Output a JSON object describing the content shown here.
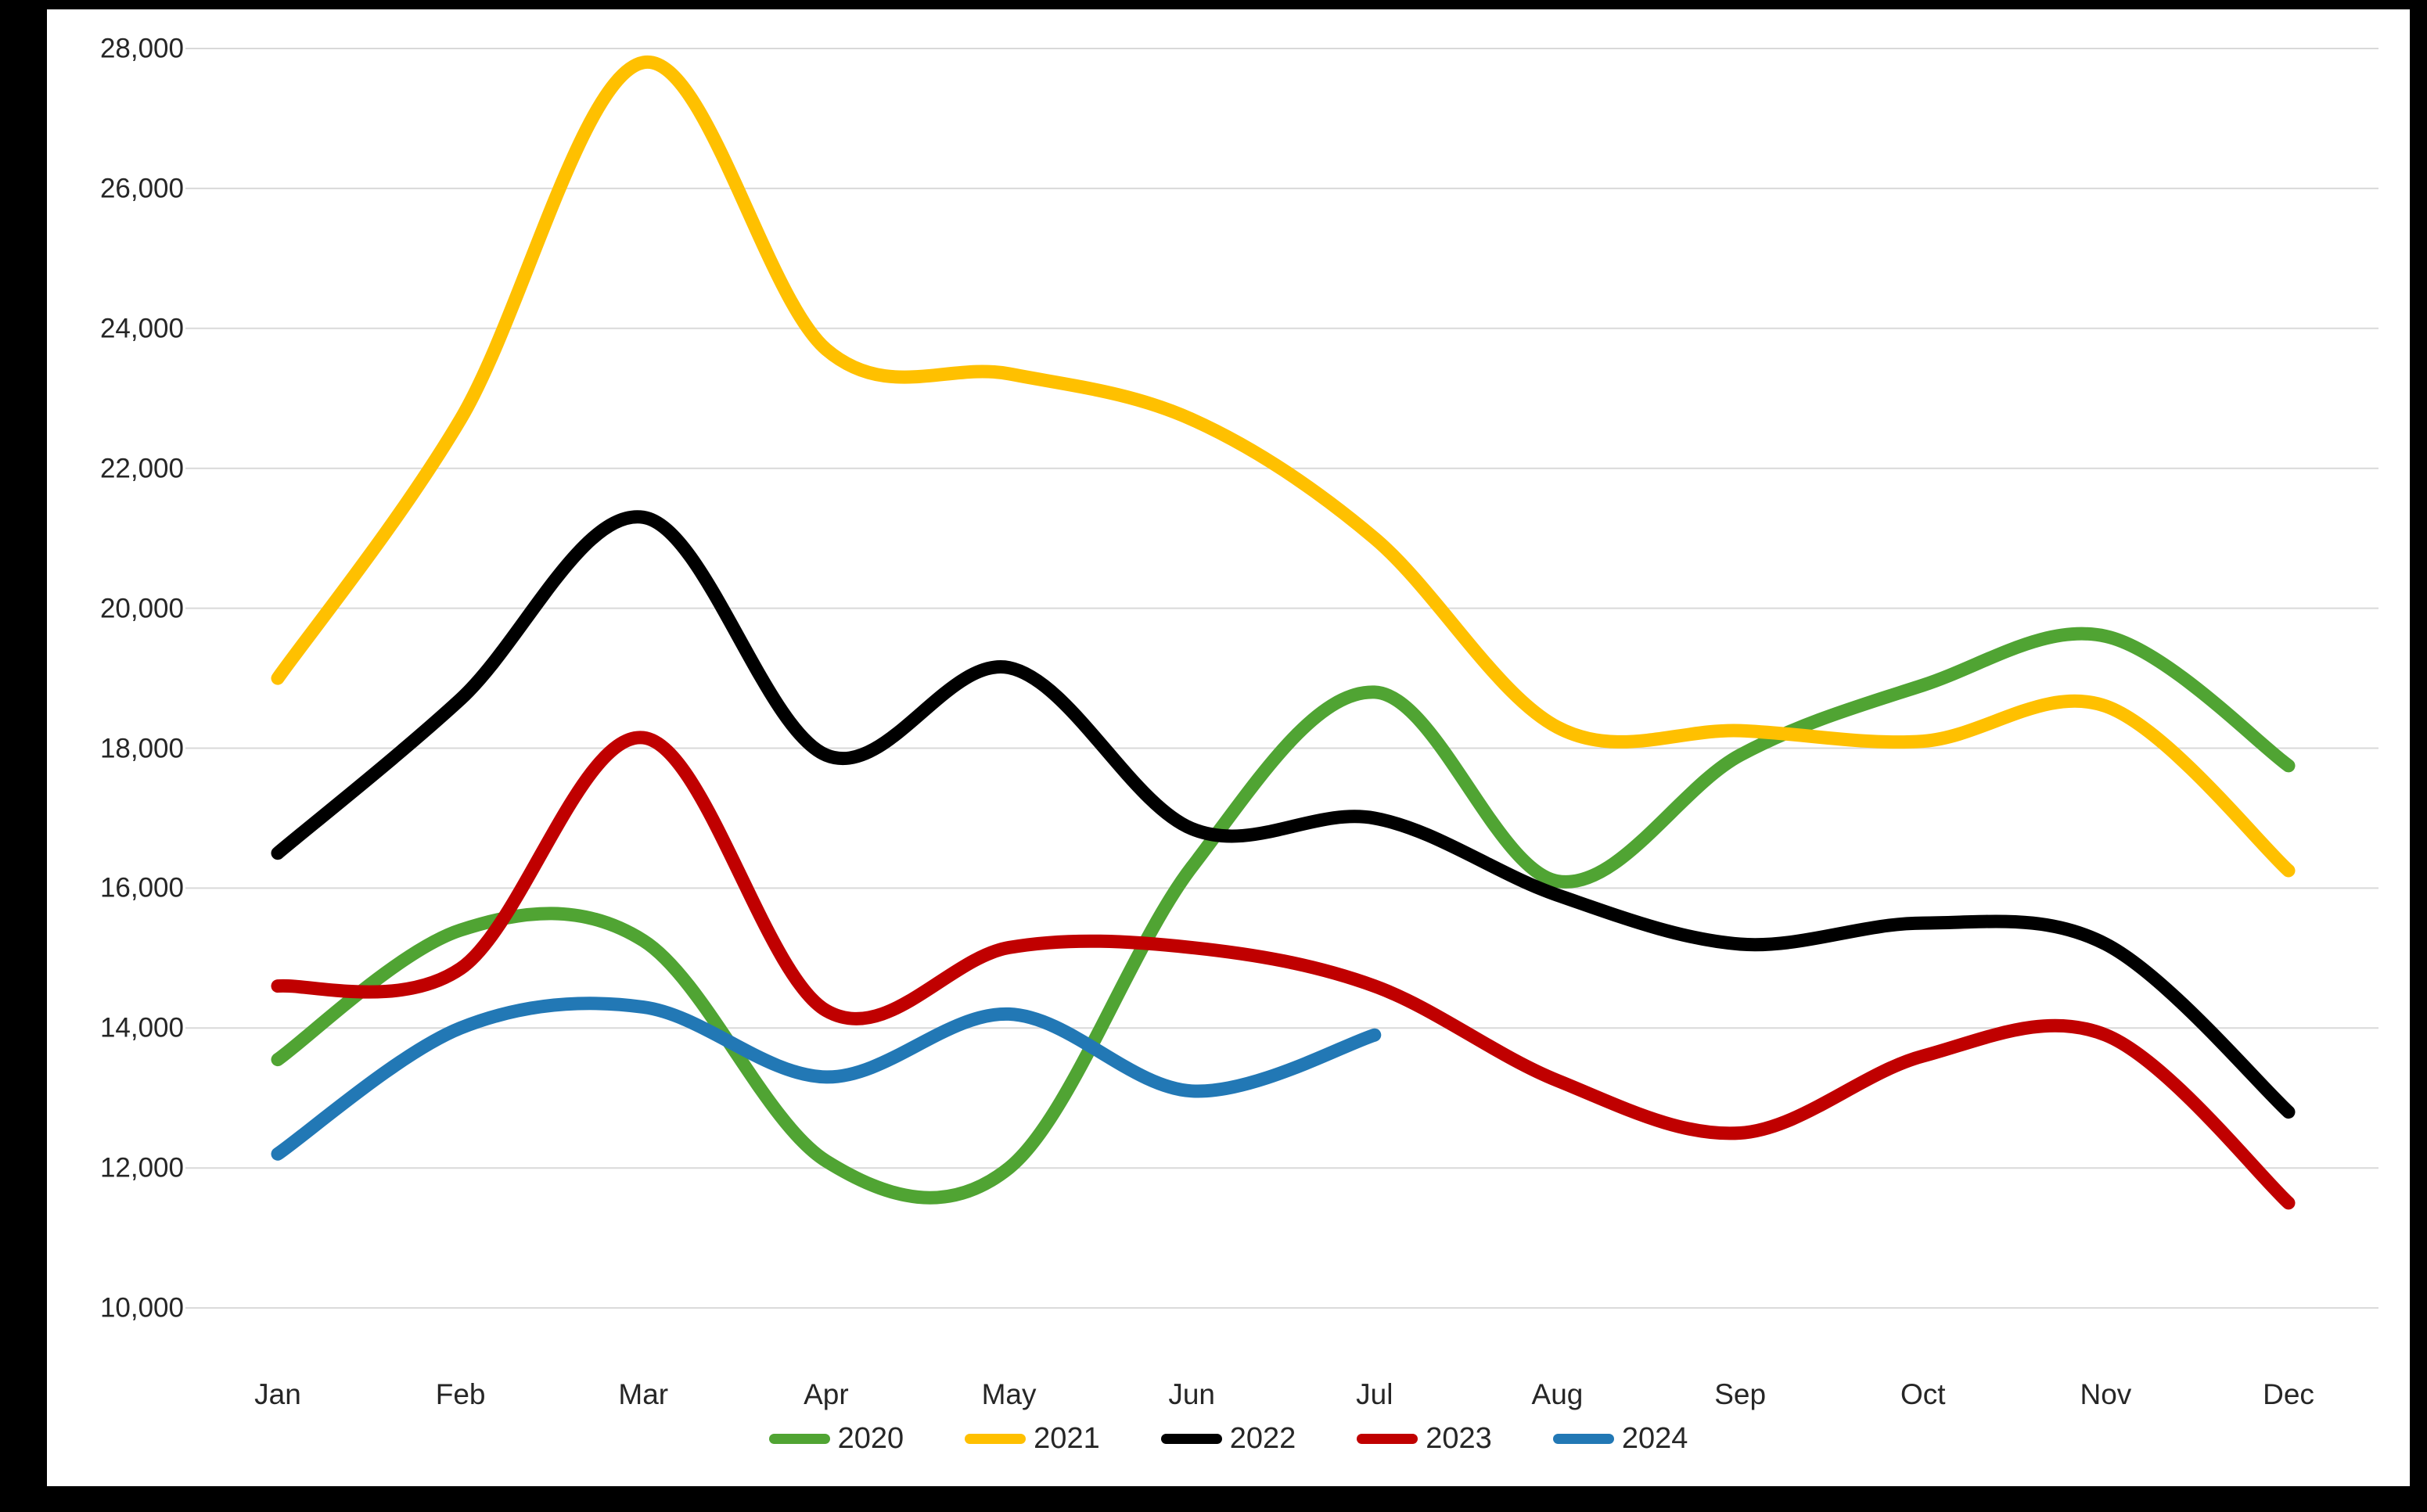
{
  "chart_data": {
    "type": "line",
    "categories": [
      "Jan",
      "Feb",
      "Mar",
      "Apr",
      "May",
      "Jun",
      "Jul",
      "Aug",
      "Sep",
      "Oct",
      "Nov",
      "Dec"
    ],
    "series": [
      {
        "name": "2020",
        "color": "#50A433",
        "values": [
          13550,
          15400,
          15250,
          12100,
          12000,
          16300,
          18800,
          16100,
          17900,
          18900,
          19600,
          17750
        ]
      },
      {
        "name": "2021",
        "color": "#FFC000",
        "values": [
          19000,
          22700,
          27800,
          23700,
          23350,
          22700,
          21000,
          18300,
          18250,
          18100,
          18600,
          16250
        ]
      },
      {
        "name": "2022",
        "color": "#000000",
        "values": [
          16500,
          18700,
          21300,
          17900,
          19150,
          16850,
          17000,
          15900,
          15200,
          15500,
          15200,
          12800
        ]
      },
      {
        "name": "2023",
        "color": "#C00000",
        "values": [
          14600,
          14850,
          18150,
          14250,
          15150,
          15150,
          14600,
          13250,
          12500,
          13600,
          13900,
          11500
        ]
      },
      {
        "name": "2024",
        "color": "#2278B5",
        "values": [
          12200,
          14000,
          14300,
          13300,
          14200,
          13100,
          13900
        ]
      }
    ],
    "title": "",
    "xlabel": "",
    "ylabel": "",
    "ylim": [
      10000,
      28000
    ],
    "y_tick_step": 2000,
    "y_tick_labels": [
      "10,000",
      "12,000",
      "14,000",
      "16,000",
      "18,000",
      "20,000",
      "22,000",
      "24,000",
      "26,000",
      "28,000"
    ],
    "grid": true,
    "gridline_color": "#D9D9D9",
    "background_color": "#FFFFFF",
    "frame_color": "#000000",
    "text_color": "#262626",
    "legend_position": "bottom",
    "legend_labels": [
      "2020",
      "2021",
      "2022",
      "2023",
      "2024"
    ],
    "line_width": 17
  }
}
